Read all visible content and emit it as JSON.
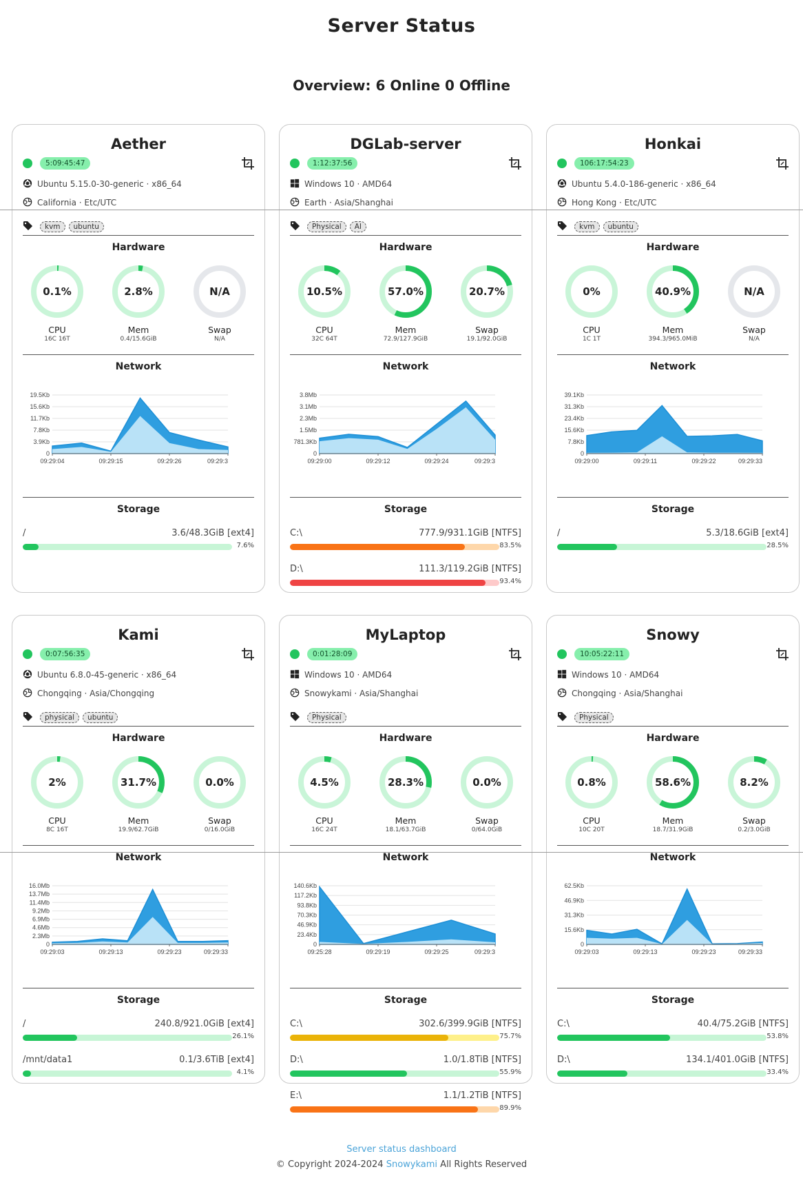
{
  "page": {
    "title": "Server Status",
    "overview": "Overview: 6 Online 0 Offline"
  },
  "labels": {
    "hardware": "Hardware",
    "network": "Network",
    "storage": "Storage",
    "cpu": "CPU",
    "mem": "Mem",
    "swap": "Swap"
  },
  "colors": {
    "online": "#22c55e",
    "gauge_track": "#c9f5d8",
    "gauge_na": "#e5e7eb",
    "gauge_fill": "#22c55e",
    "net_dark": "#2f9ee0",
    "net_light": "#b9e2f7"
  },
  "servers": [
    {
      "name": "Aether",
      "uptime": "5:09:45:47",
      "os": "Ubuntu 5.15.0-30-generic · x86_64",
      "os_icon": "ubuntu-icon",
      "location": "California · Etc/UTC",
      "tags": [
        "kvm",
        "ubuntu"
      ],
      "cpu": {
        "value": "0.1%",
        "pct": 0.1,
        "sub": "16C 16T"
      },
      "mem": {
        "value": "2.8%",
        "pct": 2.8,
        "sub": "0.4/15.6GiB"
      },
      "swap": {
        "value": "N/A",
        "pct": null,
        "sub": "N/A"
      },
      "network": {
        "yticks": [
          "19.5Kb",
          "15.6Kb",
          "11.7Kb",
          "7.8Kb",
          "3.9Kb",
          "0"
        ],
        "ymax": 19.5,
        "xticks": [
          "09:29:04",
          "09:29:15",
          "09:29:26",
          "09:29:3"
        ],
        "total": [
          2.5,
          3.5,
          0.8,
          18.5,
          7.0,
          4.5,
          2.2
        ],
        "inbound": [
          1.5,
          2.2,
          0.6,
          12.5,
          3.5,
          1.5,
          1.2
        ]
      },
      "storage": [
        {
          "mount": "/",
          "value": "3.6/48.3GiB [ext4]",
          "pct": 7.6,
          "pct_label": "7.6%",
          "color": "#22c55e",
          "track": "#c7f5d6"
        }
      ]
    },
    {
      "name": "DGLab-server",
      "uptime": "1:12:37:56",
      "os": "Windows 10 · AMD64",
      "os_icon": "windows-icon",
      "location": "Earth · Asia/Shanghai",
      "tags": [
        "Physical",
        "AI"
      ],
      "cpu": {
        "value": "10.5%",
        "pct": 10.5,
        "sub": "32C 64T"
      },
      "mem": {
        "value": "57.0%",
        "pct": 57.0,
        "sub": "72.9/127.9GiB"
      },
      "swap": {
        "value": "20.7%",
        "pct": 20.7,
        "sub": "19.1/92.0GiB"
      },
      "network": {
        "yticks": [
          "3.8Mb",
          "3.1Mb",
          "2.3Mb",
          "1.5Mb",
          "781.3Kb",
          "0"
        ],
        "ymax": 3.8,
        "xticks": [
          "09:29:00",
          "09:29:12",
          "09:29:24",
          "09:29:3"
        ],
        "total": [
          1.0,
          1.25,
          1.1,
          0.4,
          1.9,
          3.4,
          1.2
        ],
        "inbound": [
          0.8,
          1.0,
          0.9,
          0.3,
          1.6,
          3.0,
          0.9
        ]
      },
      "storage": [
        {
          "mount": "C:\\",
          "value": "777.9/931.1GiB [NTFS]",
          "pct": 83.5,
          "pct_label": "83.5%",
          "color": "#f97316",
          "track": "#fed7aa"
        },
        {
          "mount": "D:\\",
          "value": "111.3/119.2GiB [NTFS]",
          "pct": 93.4,
          "pct_label": "93.4%",
          "color": "#ef4444",
          "track": "#fecaca"
        }
      ]
    },
    {
      "name": "Honkai",
      "uptime": "106:17:54:23",
      "os": "Ubuntu 5.4.0-186-generic · x86_64",
      "os_icon": "ubuntu-icon",
      "location": "Hong Kong · Etc/UTC",
      "tags": [
        "kvm",
        "ubuntu"
      ],
      "cpu": {
        "value": "0%",
        "pct": 0,
        "sub": "1C 1T"
      },
      "mem": {
        "value": "40.9%",
        "pct": 40.9,
        "sub": "394.3/965.0MiB"
      },
      "swap": {
        "value": "N/A",
        "pct": null,
        "sub": "N/A"
      },
      "network": {
        "yticks": [
          "39.1Kb",
          "31.3Kb",
          "23.4Kb",
          "15.6Kb",
          "7.8Kb",
          "0"
        ],
        "ymax": 39.1,
        "xticks": [
          "09:29:00",
          "09:29:11",
          "09:29:22",
          "09:29:33"
        ],
        "total": [
          12.0,
          14.5,
          15.5,
          32.0,
          11.5,
          11.8,
          12.8,
          8.5
        ],
        "inbound": [
          0.5,
          0.6,
          0.8,
          11.5,
          0.8,
          0.6,
          0.6,
          0.5
        ]
      },
      "storage": [
        {
          "mount": "/",
          "value": "5.3/18.6GiB [ext4]",
          "pct": 28.5,
          "pct_label": "28.5%",
          "color": "#22c55e",
          "track": "#c7f5d6"
        }
      ]
    },
    {
      "name": "Kami",
      "uptime": "0:07:56:35",
      "os": "Ubuntu 6.8.0-45-generic · x86_64",
      "os_icon": "ubuntu-icon",
      "location": "Chongqing · Asia/Chongqing",
      "tags": [
        "physical",
        "ubuntu"
      ],
      "cpu": {
        "value": "2%",
        "pct": 2,
        "sub": "8C 16T"
      },
      "mem": {
        "value": "31.7%",
        "pct": 31.7,
        "sub": "19.9/62.7GiB"
      },
      "swap": {
        "value": "0.0%",
        "pct": 0,
        "sub": "0/16.0GiB"
      },
      "network": {
        "yticks": [
          "16.0Mb",
          "13.7Mb",
          "11.4Mb",
          "9.2Mb",
          "6.9Mb",
          "4.6Mb",
          "2.3Mb",
          "0"
        ],
        "ymax": 16.0,
        "xticks": [
          "09:29:03",
          "09:29:13",
          "09:29:23",
          "09:29:33"
        ],
        "total": [
          0.6,
          0.8,
          1.5,
          1.0,
          15.0,
          0.8,
          0.8,
          1.0
        ],
        "inbound": [
          0.3,
          0.4,
          0.8,
          0.5,
          7.5,
          0.4,
          0.4,
          0.5
        ]
      },
      "storage": [
        {
          "mount": "/",
          "value": "240.8/921.0GiB [ext4]",
          "pct": 26.1,
          "pct_label": "26.1%",
          "color": "#22c55e",
          "track": "#c7f5d6"
        },
        {
          "mount": "/mnt/data1",
          "value": "0.1/3.6TiB [ext4]",
          "pct": 4.1,
          "pct_label": "4.1%",
          "color": "#22c55e",
          "track": "#c7f5d6"
        }
      ]
    },
    {
      "name": "MyLaptop",
      "uptime": "0:01:28:09",
      "os": "Windows 10 · AMD64",
      "os_icon": "windows-icon",
      "location": "Snowykami · Asia/Shanghai",
      "tags": [
        "Physical"
      ],
      "cpu": {
        "value": "4.5%",
        "pct": 4.5,
        "sub": "16C 24T"
      },
      "mem": {
        "value": "28.3%",
        "pct": 28.3,
        "sub": "18.1/63.7GiB"
      },
      "swap": {
        "value": "0.0%",
        "pct": 0,
        "sub": "0/64.0GiB"
      },
      "network": {
        "yticks": [
          "140.6Kb",
          "117.2Kb",
          "93.8Kb",
          "70.3Kb",
          "46.9Kb",
          "23.4Kb",
          "0"
        ],
        "ymax": 140.6,
        "xticks": [
          "09:25:28",
          "09:29:19",
          "09:29:25",
          "09:29:3"
        ],
        "total": [
          138,
          2,
          30,
          58,
          25
        ],
        "inbound": [
          6,
          1,
          6,
          12,
          5
        ]
      },
      "storage": [
        {
          "mount": "C:\\",
          "value": "302.6/399.9GiB [NTFS]",
          "pct": 75.7,
          "pct_label": "75.7%",
          "color": "#eab308",
          "track": "#fef08a"
        },
        {
          "mount": "D:\\",
          "value": "1.0/1.8TiB [NTFS]",
          "pct": 55.9,
          "pct_label": "55.9%",
          "color": "#22c55e",
          "track": "#c7f5d6"
        },
        {
          "mount": "E:\\",
          "value": "1.1/1.2TiB [NTFS]",
          "pct": 89.9,
          "pct_label": "89.9%",
          "color": "#f97316",
          "track": "#fed7aa"
        }
      ]
    },
    {
      "name": "Snowy",
      "uptime": "10:05:22:11",
      "os": "Windows 10 · AMD64",
      "os_icon": "windows-icon",
      "location": "Chongqing · Asia/Shanghai",
      "tags": [
        "Physical"
      ],
      "cpu": {
        "value": "0.8%",
        "pct": 0.8,
        "sub": "10C 20T"
      },
      "mem": {
        "value": "58.6%",
        "pct": 58.6,
        "sub": "18.7/31.9GiB"
      },
      "swap": {
        "value": "8.2%",
        "pct": 8.2,
        "sub": "0.2/3.0GiB"
      },
      "network": {
        "yticks": [
          "62.5Kb",
          "46.9Kb",
          "31.3Kb",
          "15.6Kb",
          "0"
        ],
        "ymax": 62.5,
        "xticks": [
          "09:29:03",
          "09:29:13",
          "09:29:23",
          "09:29:33"
        ],
        "total": [
          15,
          11,
          16,
          0.5,
          59,
          0.5,
          0.8,
          2.5
        ],
        "inbound": [
          7,
          6,
          7,
          0.3,
          26,
          0.3,
          0.5,
          1.5
        ]
      },
      "storage": [
        {
          "mount": "C:\\",
          "value": "40.4/75.2GiB [NTFS]",
          "pct": 53.8,
          "pct_label": "53.8%",
          "color": "#22c55e",
          "track": "#c7f5d6"
        },
        {
          "mount": "D:\\",
          "value": "134.1/401.0GiB [NTFS]",
          "pct": 33.4,
          "pct_label": "33.4%",
          "color": "#22c55e",
          "track": "#c7f5d6"
        }
      ]
    }
  ],
  "footer": {
    "link": "Server status dashboard",
    "copyright": "© Copyright 2024-2024",
    "brand": "Snowykami",
    "rights": "All Rights Reserved"
  }
}
